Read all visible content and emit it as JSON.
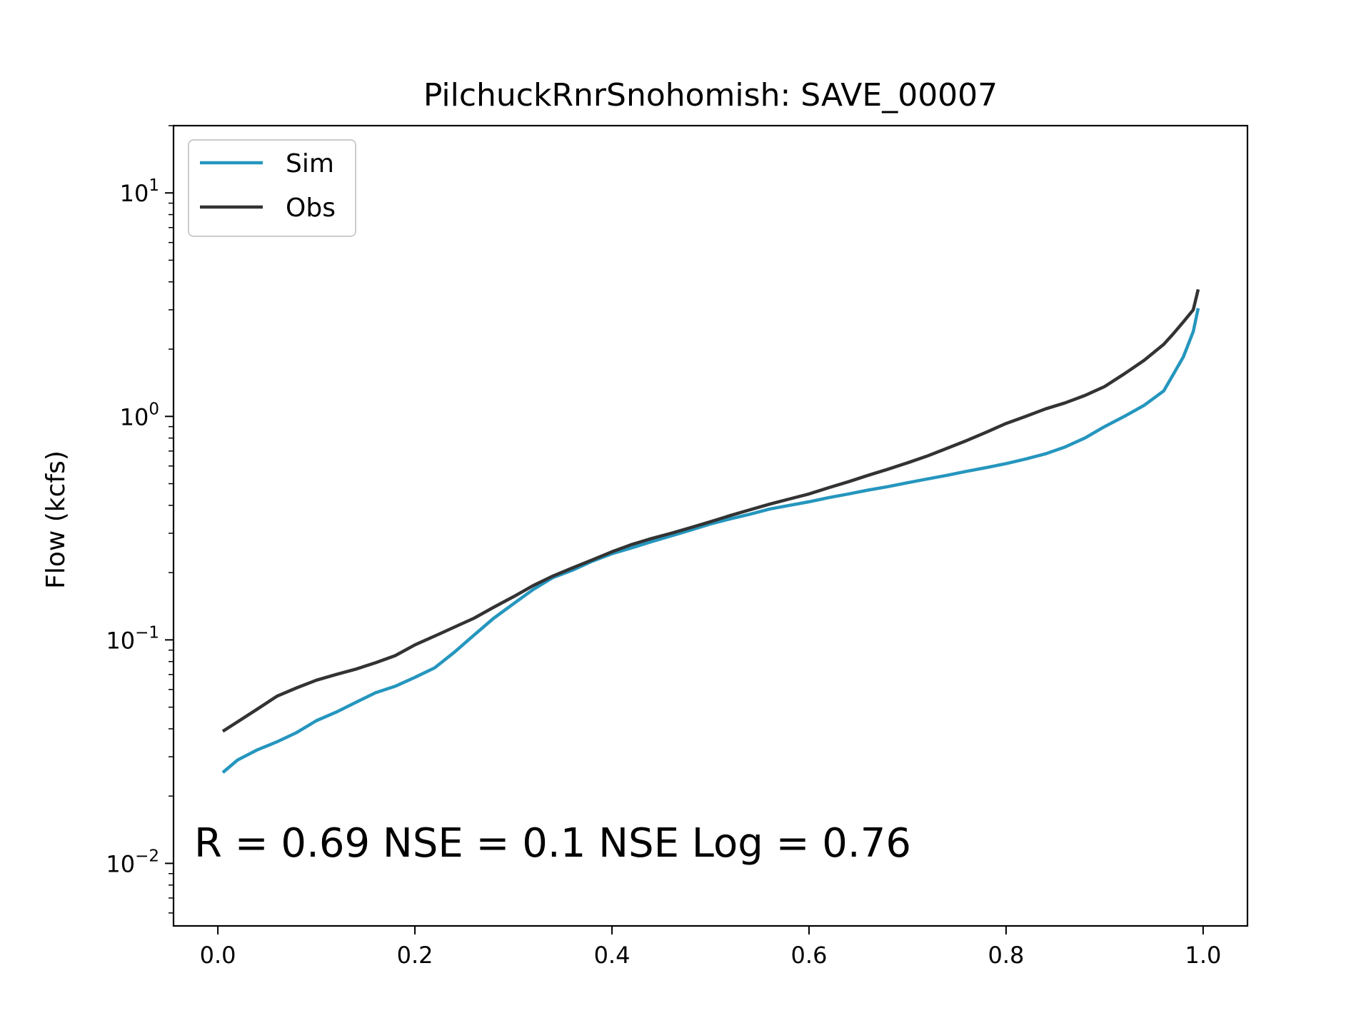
{
  "chart_data": {
    "type": "line",
    "title": "PilchuckRnrSnohomish: SAVE_00007",
    "xlabel": "",
    "ylabel": "Flow (kcfs)",
    "xscale": "linear",
    "yscale": "log",
    "xlim": [
      -0.045,
      1.045
    ],
    "ylim": [
      0.00525,
      20
    ],
    "x_ticks": [
      {
        "value": 0.0,
        "label": "0.0"
      },
      {
        "value": 0.2,
        "label": "0.2"
      },
      {
        "value": 0.4,
        "label": "0.4"
      },
      {
        "value": 0.6,
        "label": "0.6"
      },
      {
        "value": 0.8,
        "label": "0.8"
      },
      {
        "value": 1.0,
        "label": "1.0"
      }
    ],
    "y_ticks": [
      {
        "value": 10,
        "base": "10",
        "exp": "1"
      },
      {
        "value": 1,
        "base": "10",
        "exp": "0"
      },
      {
        "value": 0.1,
        "base": "10",
        "exp": "−1"
      },
      {
        "value": 0.01,
        "base": "10",
        "exp": "−2"
      }
    ],
    "grid": false,
    "legend_position": "top-left",
    "annotation": "R = 0.69  NSE = 0.1  NSE Log = 0.76",
    "series": [
      {
        "name": "Sim",
        "color": "#2596be",
        "x": [
          0.005,
          0.02,
          0.04,
          0.06,
          0.08,
          0.1,
          0.12,
          0.14,
          0.16,
          0.18,
          0.2,
          0.22,
          0.24,
          0.26,
          0.28,
          0.3,
          0.32,
          0.34,
          0.36,
          0.38,
          0.4,
          0.42,
          0.44,
          0.46,
          0.48,
          0.5,
          0.52,
          0.54,
          0.56,
          0.58,
          0.6,
          0.62,
          0.64,
          0.66,
          0.68,
          0.7,
          0.72,
          0.74,
          0.76,
          0.78,
          0.8,
          0.82,
          0.84,
          0.86,
          0.88,
          0.9,
          0.92,
          0.94,
          0.96,
          0.97,
          0.98,
          0.99,
          0.995
        ],
        "y": [
          0.0255,
          0.029,
          0.0322,
          0.035,
          0.0385,
          0.0435,
          0.0475,
          0.0525,
          0.058,
          0.062,
          0.068,
          0.075,
          0.088,
          0.105,
          0.125,
          0.145,
          0.168,
          0.19,
          0.205,
          0.225,
          0.243,
          0.258,
          0.275,
          0.292,
          0.31,
          0.33,
          0.348,
          0.365,
          0.385,
          0.4,
          0.415,
          0.433,
          0.45,
          0.468,
          0.485,
          0.505,
          0.525,
          0.545,
          0.568,
          0.59,
          0.615,
          0.645,
          0.68,
          0.73,
          0.8,
          0.9,
          1.0,
          1.12,
          1.3,
          1.55,
          1.85,
          2.4,
          3.05
        ]
      },
      {
        "name": "Obs",
        "color": "#333333",
        "x": [
          0.005,
          0.02,
          0.04,
          0.06,
          0.08,
          0.1,
          0.12,
          0.14,
          0.16,
          0.18,
          0.2,
          0.22,
          0.24,
          0.26,
          0.28,
          0.3,
          0.32,
          0.34,
          0.36,
          0.38,
          0.4,
          0.42,
          0.44,
          0.46,
          0.48,
          0.5,
          0.52,
          0.54,
          0.56,
          0.58,
          0.6,
          0.62,
          0.64,
          0.66,
          0.68,
          0.7,
          0.72,
          0.74,
          0.76,
          0.78,
          0.8,
          0.82,
          0.84,
          0.86,
          0.88,
          0.9,
          0.92,
          0.94,
          0.96,
          0.97,
          0.98,
          0.99,
          0.995
        ],
        "y": [
          0.039,
          0.043,
          0.049,
          0.056,
          0.061,
          0.066,
          0.07,
          0.074,
          0.079,
          0.085,
          0.095,
          0.104,
          0.114,
          0.125,
          0.14,
          0.156,
          0.175,
          0.193,
          0.21,
          0.228,
          0.248,
          0.267,
          0.284,
          0.3,
          0.318,
          0.338,
          0.36,
          0.382,
          0.405,
          0.427,
          0.45,
          0.48,
          0.51,
          0.545,
          0.58,
          0.62,
          0.665,
          0.72,
          0.78,
          0.85,
          0.93,
          1.0,
          1.08,
          1.15,
          1.24,
          1.36,
          1.55,
          1.78,
          2.1,
          2.35,
          2.65,
          3.0,
          3.7
        ]
      }
    ]
  }
}
